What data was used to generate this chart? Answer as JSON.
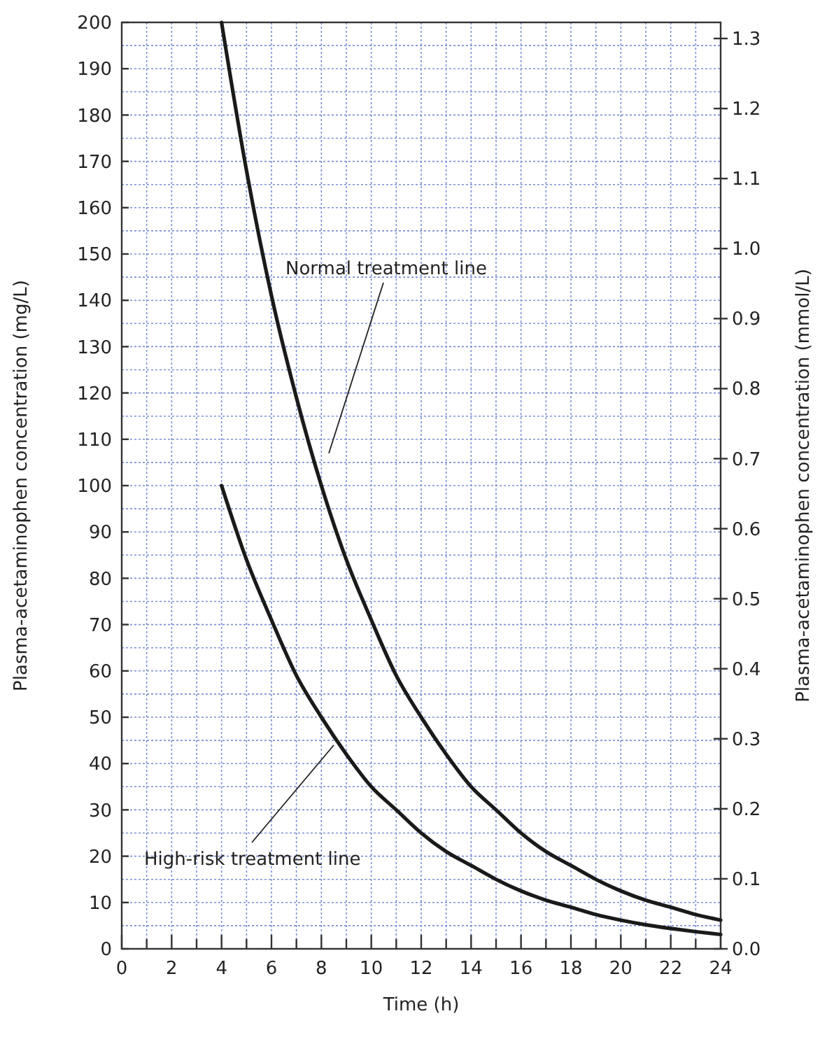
{
  "chart_data": {
    "type": "line",
    "xlabel": "Time (h)",
    "ylabel": "Plasma-acetaminophen concentration (mg/L)",
    "y2label": "Plasma-acetaminophen concentration (mmol/L)",
    "xlim": [
      0,
      24
    ],
    "ylim": [
      0,
      200
    ],
    "y2lim": [
      0,
      1.323
    ],
    "xticks": [
      0,
      {
        "value": 1,
        "label": null
      },
      2,
      {
        "value": 3,
        "label": null
      },
      4,
      {
        "value": 5,
        "label": null
      },
      6,
      {
        "value": 7,
        "label": null
      },
      8,
      {
        "value": 9,
        "label": null
      },
      10,
      {
        "value": 11,
        "label": null
      },
      12,
      {
        "value": 13,
        "label": null
      },
      14,
      {
        "value": 15,
        "label": null
      },
      16,
      {
        "value": 17,
        "label": null
      },
      18,
      {
        "value": 19,
        "label": null
      },
      20,
      {
        "value": 21,
        "label": null
      },
      22,
      {
        "value": 23,
        "label": null
      },
      24
    ],
    "yticks": [
      0,
      {
        "value": 5,
        "label": null
      },
      10,
      {
        "value": 15,
        "label": null
      },
      20,
      {
        "value": 25,
        "label": null
      },
      30,
      {
        "value": 35,
        "label": null
      },
      40,
      {
        "value": 45,
        "label": null
      },
      50,
      {
        "value": 55,
        "label": null
      },
      60,
      {
        "value": 65,
        "label": null
      },
      70,
      {
        "value": 75,
        "label": null
      },
      80,
      {
        "value": 85,
        "label": null
      },
      90,
      {
        "value": 95,
        "label": null
      },
      100,
      {
        "value": 105,
        "label": null
      },
      110,
      {
        "value": 115,
        "label": null
      },
      120,
      {
        "value": 125,
        "label": null
      },
      130,
      {
        "value": 135,
        "label": null
      },
      140,
      {
        "value": 145,
        "label": null
      },
      150,
      {
        "value": 155,
        "label": null
      },
      160,
      {
        "value": 165,
        "label": null
      },
      170,
      {
        "value": 175,
        "label": null
      },
      180,
      {
        "value": 185,
        "label": null
      },
      190,
      {
        "value": 195,
        "label": null
      },
      200
    ],
    "y2ticks": [
      {
        "value": 0,
        "label": "0.0"
      },
      0.1,
      0.2,
      0.3,
      0.4,
      0.5,
      0.6,
      0.7,
      0.8,
      0.9,
      {
        "value": 1,
        "label": "1.0"
      },
      1.1,
      1.2,
      1.3
    ],
    "grid": true,
    "line_style": "solid",
    "marker": "none",
    "series": [
      {
        "name": "Normal treatment line",
        "color": "#1a1a1a",
        "x": [
          4,
          5,
          6,
          7,
          8,
          9,
          10,
          11,
          12,
          13,
          14,
          15,
          16,
          17,
          18,
          19,
          20,
          21,
          22,
          23,
          24
        ],
        "values": [
          200,
          168,
          141,
          119,
          100,
          84,
          71,
          59,
          50,
          42,
          35,
          30,
          25,
          21,
          18,
          15,
          12.5,
          10.5,
          9,
          7.4,
          6.2
        ]
      },
      {
        "name": "High-risk treatment line",
        "color": "#1a1a1a",
        "x": [
          4,
          5,
          6,
          7,
          8,
          9,
          10,
          11,
          12,
          13,
          14,
          15,
          16,
          17,
          18,
          19,
          20,
          21,
          22,
          23,
          24
        ],
        "values": [
          100,
          84,
          71,
          59,
          50,
          42,
          35,
          30,
          25,
          21,
          18,
          15,
          12.5,
          10.5,
          9,
          7.4,
          6.2,
          5.2,
          4.4,
          3.7,
          3.1
        ]
      }
    ]
  }
}
